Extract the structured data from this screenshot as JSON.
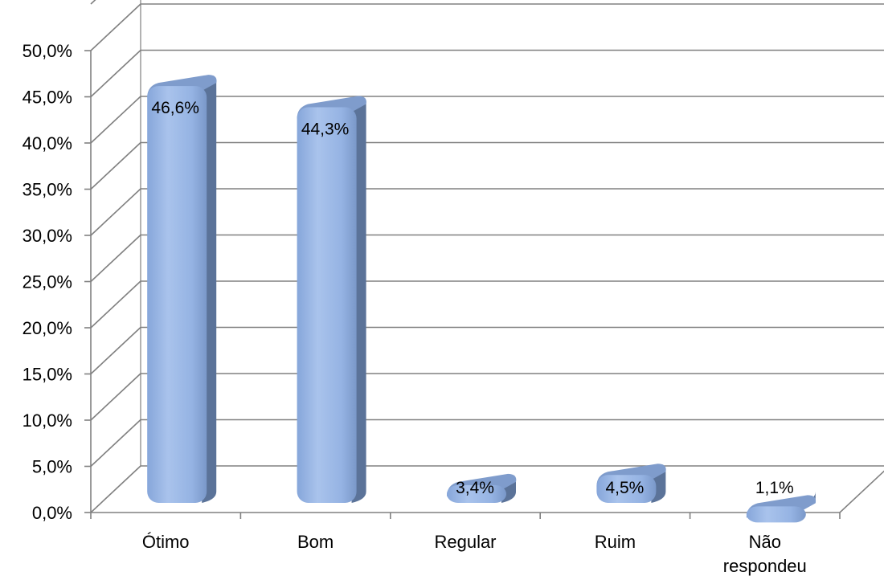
{
  "chart_data": {
    "type": "bar",
    "style": "3d-cylinder-columns",
    "categories": [
      "Ótimo",
      "Bom",
      "Regular",
      "Ruim",
      "Não respondeu"
    ],
    "category_lines": [
      [
        "Ótimo"
      ],
      [
        "Bom"
      ],
      [
        "Regular"
      ],
      [
        "Ruim"
      ],
      [
        "Não",
        "respondeu"
      ]
    ],
    "values": [
      46.6,
      44.3,
      3.4,
      4.5,
      1.1
    ],
    "data_labels": [
      "46,6%",
      "44,3%",
      "3,4%",
      "4,5%",
      "1,1%"
    ],
    "yticks": [
      0,
      5,
      10,
      15,
      20,
      25,
      30,
      35,
      40,
      45,
      50
    ],
    "ytick_labels": [
      "0,0%",
      "5,0%",
      "10,0%",
      "15,0%",
      "20,0%",
      "25,0%",
      "30,0%",
      "35,0%",
      "40,0%",
      "45,0%",
      "50,0%"
    ],
    "ylim": [
      0,
      50
    ],
    "grid": true,
    "legend": "none",
    "colors": {
      "bar_front": "#95b3e3",
      "bar_highlight": "#c2d6f3",
      "bar_side": "#5b7399",
      "bar_top": "#7f9ccc",
      "grid": "#808080",
      "axis": "#808080"
    }
  }
}
